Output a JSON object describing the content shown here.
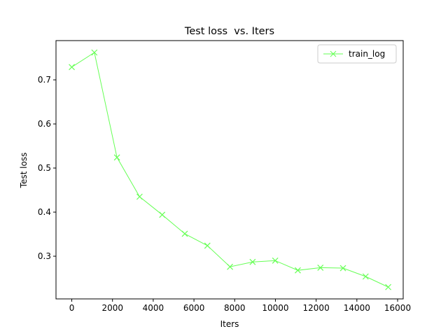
{
  "chart_data": {
    "type": "line",
    "title": "Test loss  vs. Iters",
    "xlabel": "Iters",
    "ylabel": "Test loss",
    "x": [
      0,
      1110,
      2220,
      3330,
      4440,
      5550,
      6660,
      7770,
      8880,
      9990,
      11100,
      12210,
      13320,
      14430,
      15540
    ],
    "series": [
      {
        "name": "train_log",
        "color": "#66ff55",
        "values": [
          0.729,
          0.762,
          0.524,
          0.435,
          0.394,
          0.351,
          0.324,
          0.276,
          0.287,
          0.29,
          0.268,
          0.274,
          0.273,
          0.254,
          0.23
        ]
      }
    ],
    "xlim": [
      -775,
      16275
    ],
    "xticks": [
      0,
      2000,
      4000,
      6000,
      8000,
      10000,
      12000,
      14000,
      16000
    ],
    "ylim": [
      0.2032,
      0.789
    ],
    "yticks": [
      0.3,
      0.4,
      0.5,
      0.6,
      0.7
    ],
    "legend": "upper right",
    "grid": false
  }
}
